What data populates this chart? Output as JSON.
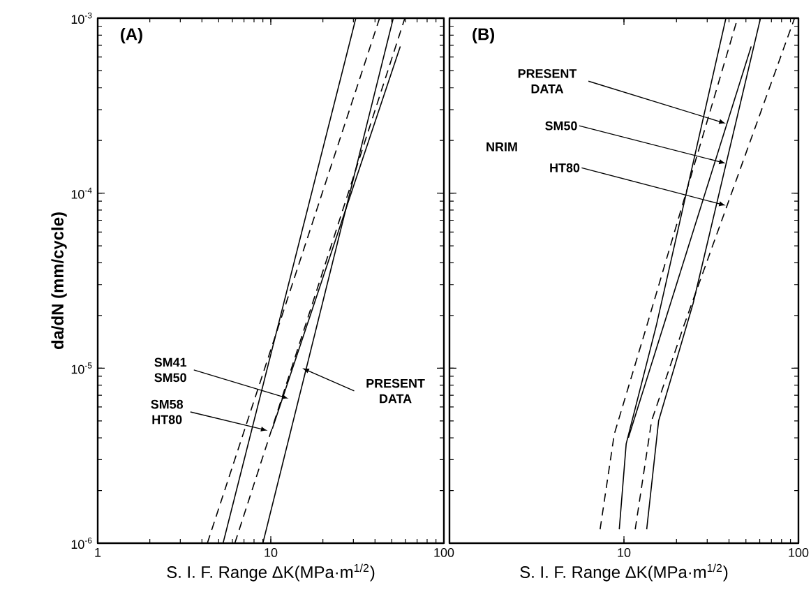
{
  "chart_data": [
    {
      "type": "line",
      "title": "(A)",
      "xlabel": "S. I. F. Range ΔK(MPa·m$^{1/2}$)",
      "ylabel": "da/dN (mm/cycle)",
      "log": "xy",
      "xlim": [
        1,
        100
      ],
      "ylim": [
        1e-06,
        0.001
      ],
      "xticks": [
        1,
        10,
        100
      ],
      "yticks": [
        {
          "value": 1e-06,
          "label": "10$^{-6}$"
        },
        {
          "value": 1e-05,
          "label": "10$^{-5}$"
        },
        {
          "value": 0.0001,
          "label": "10$^{-4}$"
        },
        {
          "value": 0.001,
          "label": "10$^{-3}$"
        }
      ],
      "series": [
        {
          "color": "#000000",
          "line_style": "dashed",
          "x": [
            4.3,
            42.5
          ],
          "values": [
            1e-06,
            0.001
          ]
        },
        {
          "color": "#000000",
          "line_style": "solid",
          "x": [
            5.3,
            31
          ],
          "values": [
            1e-06,
            0.001
          ]
        },
        {
          "color": "#000000",
          "line_style": "dashed",
          "x": [
            6.2,
            59.5
          ],
          "values": [
            1e-06,
            0.001
          ]
        },
        {
          "color": "#000000",
          "line_style": "solid",
          "x": [
            9.0,
            51
          ],
          "values": [
            1e-06,
            0.001
          ]
        },
        {
          "color": "#000000",
          "line_style": "solid",
          "x": [
            10.2,
            56
          ],
          "values": [
            4.5e-06,
            0.00069
          ]
        }
      ],
      "annotations": [
        {
          "text": "SM41 SM50",
          "x": 12.7,
          "y": 6.7e-06
        },
        {
          "text": "SM58 HT80",
          "x": 9.6,
          "y": 4.4e-06
        },
        {
          "text": "PRESENT DATA",
          "x": 15.2,
          "y": 1e-05
        }
      ]
    },
    {
      "type": "line",
      "title": "(B)",
      "xlabel": "S. I. F. Range ΔK(MPa·m$^{1/2}$)",
      "log": "xy",
      "tick_labels": "x",
      "xlim": [
        1,
        100
      ],
      "ylim": [
        1e-06,
        0.001
      ],
      "xticks": [
        10,
        100
      ],
      "yticks": [
        1e-06,
        1e-05,
        0.0001,
        0.001
      ],
      "series": [
        {
          "color": "#000000",
          "line_style": "dashed",
          "x": [
            7.3,
            8.8,
            13.5,
            44.8
          ],
          "values": [
            1.2e-06,
            4.2e-06,
            1.74e-05,
            0.001
          ]
        },
        {
          "color": "#000000",
          "line_style": "solid",
          "x": [
            9.4,
            10.3,
            15.3,
            38.4
          ],
          "values": [
            1.2e-06,
            3.7e-06,
            1.74e-05,
            0.001
          ]
        },
        {
          "color": "#000000",
          "line_style": "dashed",
          "x": [
            11.6,
            14.4,
            22,
            95
          ],
          "values": [
            1.2e-06,
            5e-06,
            1.74e-05,
            0.001
          ]
        },
        {
          "color": "#000000",
          "line_style": "solid",
          "x": [
            13.5,
            15.8,
            24.9,
            60.6
          ],
          "values": [
            1.2e-06,
            5e-06,
            2.34e-05,
            0.001
          ]
        },
        {
          "color": "#000000",
          "line_style": "solid",
          "x": [
            10.6,
            53.6
          ],
          "values": [
            4e-06,
            0.00069
          ]
        }
      ],
      "annotations": [
        {
          "text": "PRESENT DATA",
          "x": 38.4,
          "y": 0.00025
        },
        "NRIM",
        {
          "text": "SM50",
          "x": 38.4,
          "y": 0.000148
        },
        {
          "text": "HT80",
          "x": 38.4,
          "y": 8.5e-05
        }
      ]
    }
  ]
}
